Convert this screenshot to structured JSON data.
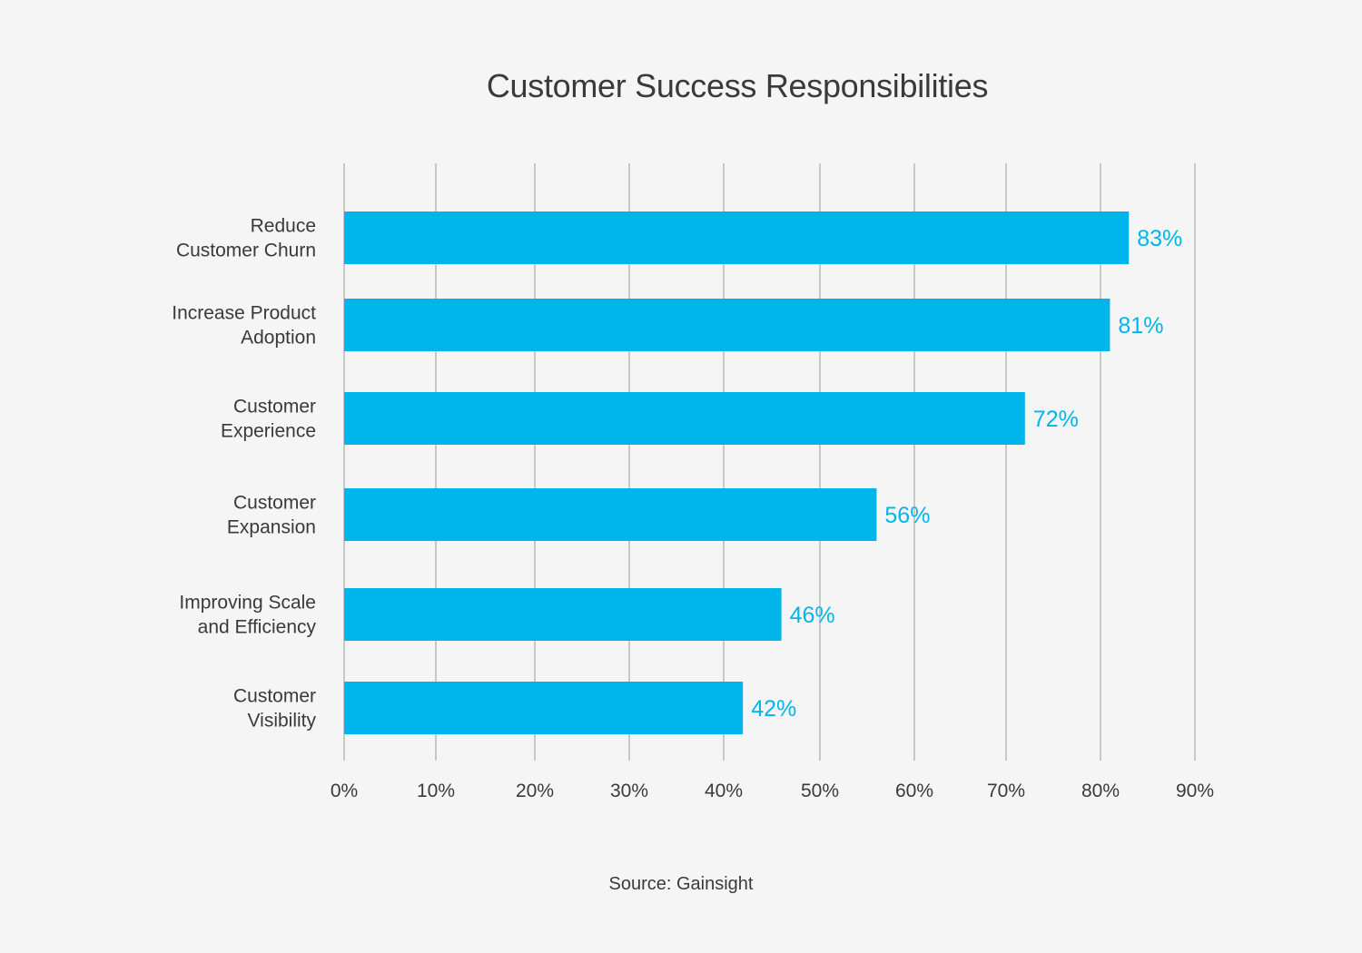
{
  "chart_data": {
    "type": "bar",
    "orientation": "horizontal",
    "title": "Customer Success Responsibilities",
    "categories": [
      [
        "Reduce",
        "Customer Churn"
      ],
      [
        "Increase Product",
        "Adoption"
      ],
      [
        "Customer",
        "Experience"
      ],
      [
        "Customer",
        "Expansion"
      ],
      [
        "Improving Scale",
        "and Efficiency"
      ],
      [
        "Customer",
        "Visibility"
      ]
    ],
    "values": [
      83,
      81,
      72,
      56,
      46,
      42
    ],
    "value_labels": [
      "83%",
      "81%",
      "72%",
      "56%",
      "46%",
      "42%"
    ],
    "xlim": [
      0,
      90
    ],
    "x_ticks": [
      0,
      10,
      20,
      30,
      40,
      50,
      60,
      70,
      80,
      90
    ],
    "x_tick_labels": [
      "0%",
      "10%",
      "20%",
      "30%",
      "40%",
      "50%",
      "60%",
      "70%",
      "80%",
      "90%"
    ],
    "grid": "vertical",
    "legend": "none",
    "bar_color": "#00b5ec",
    "label_color": "#00b5ec",
    "grid_color": "#c8c8c8",
    "text_color": "#3a3a3a",
    "background": "#f5f5f5"
  },
  "source": "Source: Gainsight"
}
